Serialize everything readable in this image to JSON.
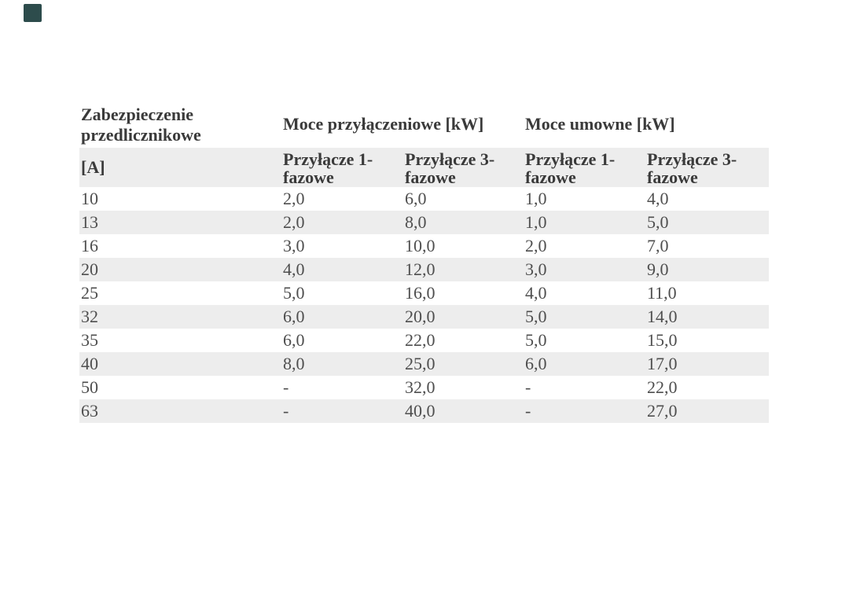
{
  "page": {
    "background": "#ffffff"
  },
  "logo": {
    "color": "#2d4c4c"
  },
  "table": {
    "corner_header": "Zabezpieczenie przedlicznikowe",
    "corner_unit": "[A]",
    "groups": [
      {
        "label": "Moce przyłączeniowe [kW]"
      },
      {
        "label": "Moce umowne [kW]"
      }
    ],
    "subheaders": [
      "Przyłącze 1-fazowe",
      "Przyłącze 3-fazowe",
      "Przyłącze 1-fazowe",
      "Przyłącze 3-fazowe"
    ],
    "rows": [
      {
        "fuse": "10",
        "values": [
          "2,0",
          "6,0",
          "1,0",
          "4,0"
        ]
      },
      {
        "fuse": "13",
        "values": [
          "2,0",
          "8,0",
          "1,0",
          "5,0"
        ]
      },
      {
        "fuse": "16",
        "values": [
          "3,0",
          "10,0",
          "2,0",
          "7,0"
        ]
      },
      {
        "fuse": "20",
        "values": [
          "4,0",
          "12,0",
          "3,0",
          "9,0"
        ]
      },
      {
        "fuse": "25",
        "values": [
          "5,0",
          "16,0",
          "4,0",
          "11,0"
        ]
      },
      {
        "fuse": "32",
        "values": [
          "6,0",
          "20,0",
          "5,0",
          "14,0"
        ]
      },
      {
        "fuse": "35",
        "values": [
          "6,0",
          "22,0",
          "5,0",
          "15,0"
        ]
      },
      {
        "fuse": "40",
        "values": [
          "8,0",
          "25,0",
          "6,0",
          "17,0"
        ]
      },
      {
        "fuse": "50",
        "values": [
          "-",
          "32,0",
          "-",
          "22,0"
        ]
      },
      {
        "fuse": "63",
        "values": [
          "-",
          "40,0",
          "-",
          "27,0"
        ]
      }
    ],
    "colors": {
      "stripe": "#ededed",
      "header_text": "#3a3a3a",
      "data_text": "#4e4e4e"
    }
  }
}
